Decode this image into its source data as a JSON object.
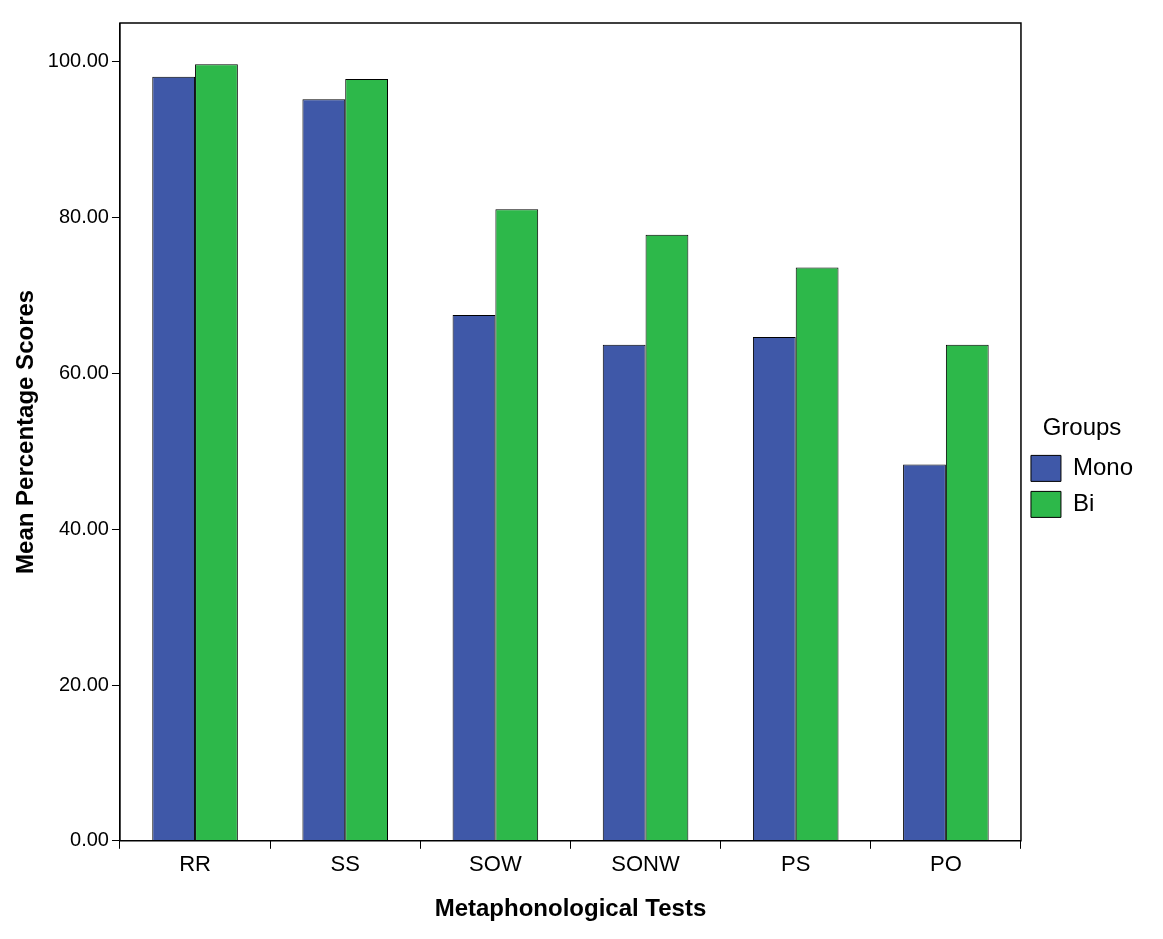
{
  "chart_data": {
    "type": "bar",
    "xlabel": "Metaphonological Tests",
    "ylabel": "Mean Percentage Scores",
    "legend_title": "Groups",
    "categories": [
      "RR",
      "SS",
      "SOW",
      "SONW",
      "PS",
      "PO"
    ],
    "series": [
      {
        "name": "Mono",
        "color": "#3f58a8",
        "values": [
          98.1,
          95.2,
          67.5,
          63.7,
          64.7,
          48.3
        ]
      },
      {
        "name": "Bi",
        "color": "#2db84a",
        "values": [
          99.7,
          97.8,
          81.1,
          77.8,
          73.6,
          63.7
        ]
      }
    ],
    "ylim": [
      0,
      105
    ],
    "yticks": [
      {
        "value": 0,
        "label": "0.00"
      },
      {
        "value": 20,
        "label": "20.00"
      },
      {
        "value": 40,
        "label": "40.00"
      },
      {
        "value": 60,
        "label": "60.00"
      },
      {
        "value": 80,
        "label": "80.00"
      },
      {
        "value": 100,
        "label": "100.00"
      }
    ],
    "grid": false,
    "legend": "right"
  }
}
